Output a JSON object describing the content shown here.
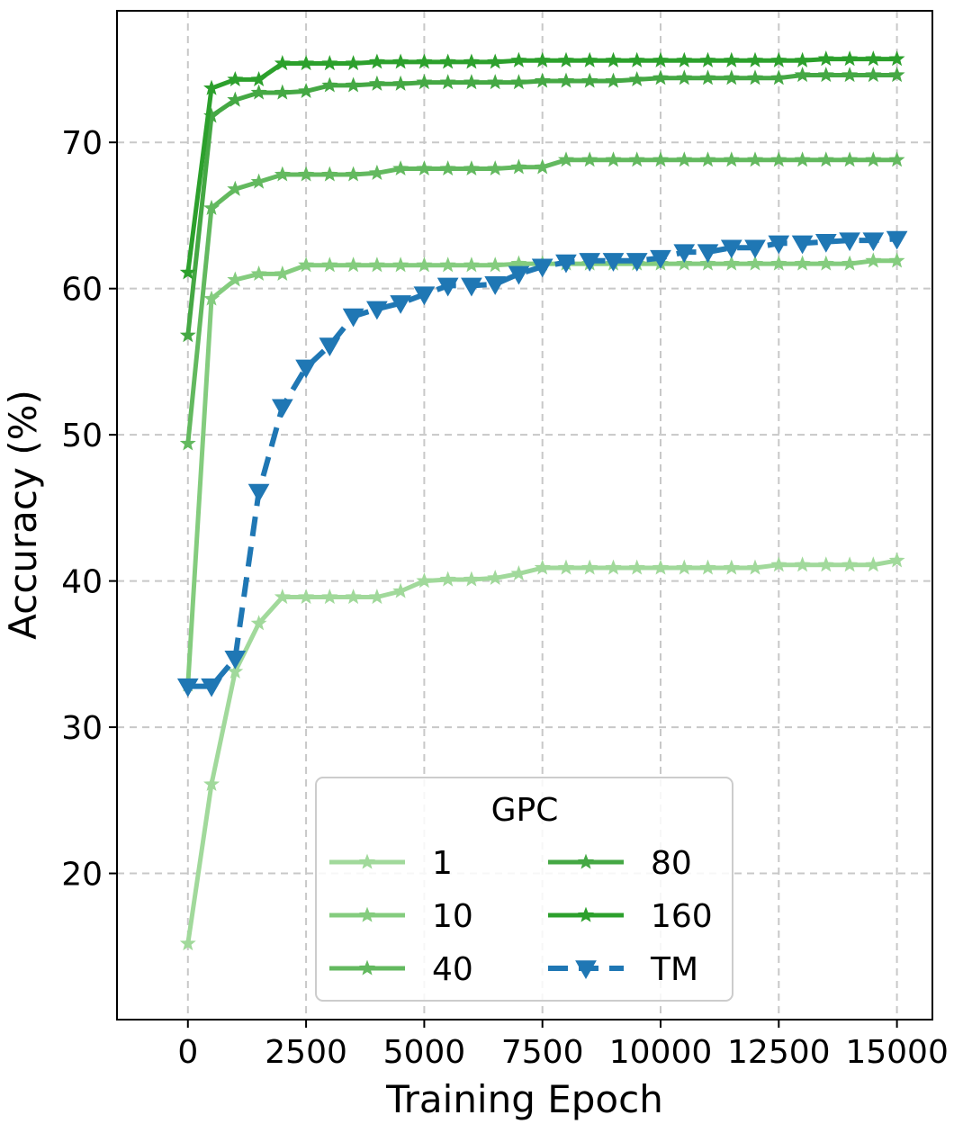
{
  "chart_data": {
    "type": "line",
    "xlabel": "Training Epoch",
    "ylabel": "Accuracy (%)",
    "xlim": [
      -1500,
      15750
    ],
    "ylim": [
      10,
      79
    ],
    "xticks": [
      0,
      2500,
      5000,
      7500,
      10000,
      12500,
      15000
    ],
    "xtick_labels": [
      "0",
      "2500",
      "5000",
      "7500",
      "10000",
      "12500",
      "15000"
    ],
    "yticks": [
      20,
      30,
      40,
      50,
      60,
      70
    ],
    "ytick_labels": [
      "20",
      "30",
      "40",
      "50",
      "60",
      "70"
    ],
    "grid": true,
    "legend": {
      "title": "GPC",
      "placement": "lower-center",
      "columns": 2
    },
    "x": [
      0,
      500,
      1000,
      1500,
      2000,
      2500,
      3000,
      3500,
      4000,
      4500,
      5000,
      5500,
      6000,
      6500,
      7000,
      7500,
      8000,
      8500,
      9000,
      9500,
      10000,
      10500,
      11000,
      11500,
      12000,
      12500,
      13000,
      13500,
      14000,
      14500,
      15000
    ],
    "series": [
      {
        "name": "1",
        "color": "#a1d99b",
        "line_style": "solid",
        "marker": "star",
        "values": [
          15.2,
          26.1,
          33.8,
          37.1,
          38.9,
          38.9,
          38.9,
          38.9,
          38.9,
          39.3,
          40.0,
          40.1,
          40.1,
          40.2,
          40.5,
          40.9,
          40.9,
          40.9,
          40.9,
          40.9,
          40.9,
          40.9,
          40.9,
          40.9,
          40.9,
          41.1,
          41.1,
          41.1,
          41.1,
          41.1,
          41.4
        ]
      },
      {
        "name": "10",
        "color": "#84cc7e",
        "line_style": "solid",
        "marker": "star",
        "values": [
          32.9,
          59.3,
          60.6,
          61.0,
          61.0,
          61.6,
          61.6,
          61.6,
          61.6,
          61.6,
          61.6,
          61.6,
          61.6,
          61.6,
          61.7,
          61.7,
          61.7,
          61.7,
          61.7,
          61.7,
          61.7,
          61.7,
          61.7,
          61.7,
          61.7,
          61.7,
          61.7,
          61.7,
          61.7,
          61.9,
          61.9
        ]
      },
      {
        "name": "40",
        "color": "#63b95f",
        "line_style": "solid",
        "marker": "star",
        "values": [
          49.4,
          65.5,
          66.8,
          67.3,
          67.8,
          67.8,
          67.8,
          67.8,
          67.9,
          68.2,
          68.2,
          68.2,
          68.2,
          68.2,
          68.3,
          68.3,
          68.8,
          68.8,
          68.8,
          68.8,
          68.8,
          68.8,
          68.8,
          68.8,
          68.8,
          68.8,
          68.8,
          68.8,
          68.8,
          68.8,
          68.8
        ]
      },
      {
        "name": "80",
        "color": "#45a844",
        "line_style": "solid",
        "marker": "star",
        "values": [
          56.8,
          71.8,
          72.9,
          73.4,
          73.4,
          73.5,
          73.9,
          73.9,
          74.0,
          74.0,
          74.1,
          74.1,
          74.1,
          74.1,
          74.1,
          74.2,
          74.2,
          74.2,
          74.2,
          74.3,
          74.4,
          74.4,
          74.4,
          74.4,
          74.4,
          74.4,
          74.6,
          74.6,
          74.6,
          74.6,
          74.6
        ]
      },
      {
        "name": "160",
        "color": "#2ca02c",
        "line_style": "solid",
        "marker": "star",
        "values": [
          61.1,
          73.7,
          74.3,
          74.3,
          75.4,
          75.4,
          75.4,
          75.4,
          75.5,
          75.5,
          75.5,
          75.5,
          75.5,
          75.5,
          75.6,
          75.6,
          75.6,
          75.6,
          75.6,
          75.6,
          75.6,
          75.6,
          75.6,
          75.6,
          75.6,
          75.6,
          75.6,
          75.7,
          75.7,
          75.7,
          75.7
        ]
      },
      {
        "name": "TM",
        "color": "#1f77b4",
        "line_style": "dashed",
        "marker": "triangle-down",
        "values": [
          32.8,
          32.8,
          34.7,
          46.1,
          51.9,
          54.6,
          56.1,
          58.1,
          58.6,
          59.0,
          59.6,
          60.2,
          60.2,
          60.3,
          61.0,
          61.5,
          61.8,
          61.9,
          61.9,
          61.9,
          62.1,
          62.5,
          62.5,
          62.8,
          62.8,
          63.1,
          63.1,
          63.2,
          63.3,
          63.3,
          63.4
        ]
      }
    ]
  }
}
